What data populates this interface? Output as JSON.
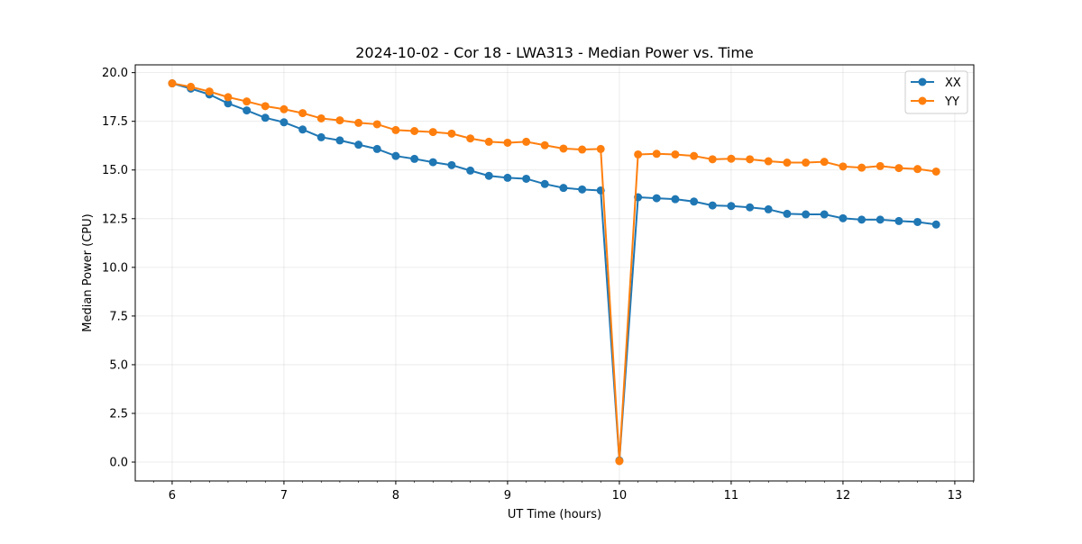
{
  "chart_data": {
    "type": "line",
    "title": "2024-10-02 - Cor 18 - LWA313 - Median Power vs. Time",
    "xlabel": "UT Time (hours)",
    "ylabel": "Median Power (CPU)",
    "xlim": [
      5.67,
      13.17
    ],
    "ylim": [
      -0.97,
      20.4
    ],
    "x_ticks": [
      6,
      7,
      8,
      9,
      10,
      11,
      12,
      13
    ],
    "y_ticks": [
      0.0,
      2.5,
      5.0,
      7.5,
      10.0,
      12.5,
      15.0,
      17.5,
      20.0
    ],
    "x_tick_labels": [
      "6",
      "7",
      "8",
      "9",
      "10",
      "11",
      "12",
      "13"
    ],
    "y_tick_labels": [
      "0.0",
      "2.5",
      "5.0",
      "7.5",
      "10.0",
      "12.5",
      "15.0",
      "17.5",
      "20.0"
    ],
    "grid": true,
    "legend_position": "top-right",
    "x": [
      6.0,
      6.167,
      6.333,
      6.5,
      6.667,
      6.833,
      7.0,
      7.167,
      7.333,
      7.5,
      7.667,
      7.833,
      8.0,
      8.167,
      8.333,
      8.5,
      8.667,
      8.833,
      9.0,
      9.167,
      9.333,
      9.5,
      9.667,
      9.833,
      10.0,
      10.167,
      10.333,
      10.5,
      10.667,
      10.833,
      11.0,
      11.167,
      11.333,
      11.5,
      11.667,
      11.833,
      12.0,
      12.167,
      12.333,
      12.5,
      12.667,
      12.833
    ],
    "series": [
      {
        "name": "XX",
        "color": "#1f77b4",
        "values": [
          19.45,
          19.18,
          18.88,
          18.42,
          18.06,
          17.68,
          17.45,
          17.08,
          16.68,
          16.52,
          16.3,
          16.08,
          15.72,
          15.57,
          15.4,
          15.25,
          14.97,
          14.7,
          14.6,
          14.55,
          14.28,
          14.08,
          14.0,
          13.95,
          0.08,
          13.6,
          13.55,
          13.5,
          13.38,
          13.18,
          13.15,
          13.08,
          12.98,
          12.75,
          12.72,
          12.72,
          12.52,
          12.45,
          12.45,
          12.38,
          12.33,
          12.2
        ]
      },
      {
        "name": "YY",
        "color": "#ff7f0e",
        "values": [
          19.45,
          19.27,
          19.03,
          18.74,
          18.52,
          18.28,
          18.12,
          17.92,
          17.65,
          17.55,
          17.42,
          17.35,
          17.05,
          17.0,
          16.95,
          16.87,
          16.62,
          16.45,
          16.4,
          16.45,
          16.27,
          16.1,
          16.05,
          16.08,
          0.05,
          15.8,
          15.83,
          15.8,
          15.72,
          15.55,
          15.58,
          15.55,
          15.45,
          15.38,
          15.38,
          15.42,
          15.18,
          15.12,
          15.2,
          15.1,
          15.05,
          14.92
        ]
      }
    ]
  }
}
